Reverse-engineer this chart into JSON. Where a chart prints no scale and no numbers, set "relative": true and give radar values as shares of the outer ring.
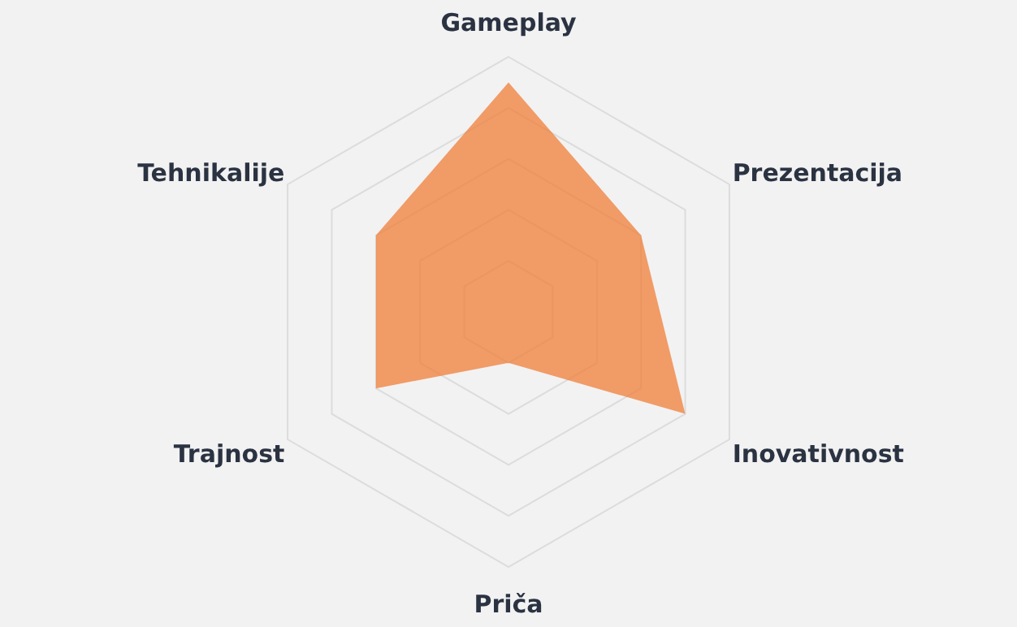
{
  "chart_data": {
    "type": "radar",
    "relative": true,
    "categories": [
      "Gameplay",
      "Prezentacija",
      "Inovativnost",
      "Priča",
      "Trajnost",
      "Tehnikalije"
    ],
    "series": [
      {
        "color": "#f07d38",
        "values": [
          0.9,
          0.6,
          0.8,
          0.2,
          0.6,
          0.6
        ]
      }
    ],
    "grid": true
  }
}
